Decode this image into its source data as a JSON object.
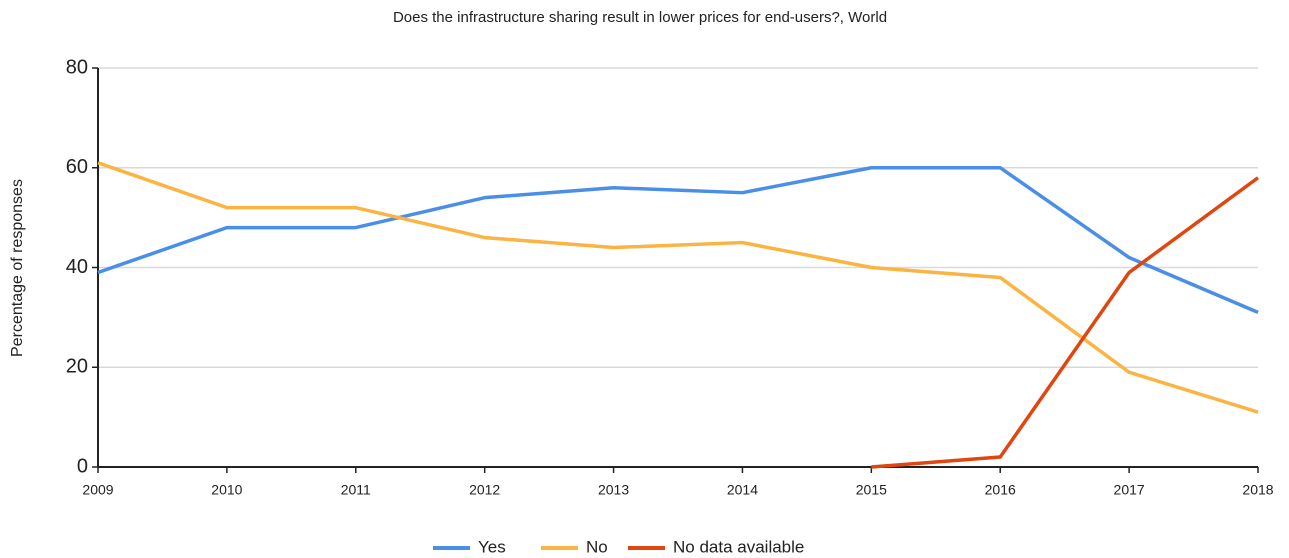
{
  "chart_data": {
    "type": "line",
    "title": "Does the infrastructure sharing result in lower prices for end-users?, World",
    "y_label": "Percentage of responses",
    "x": [
      2009,
      2010,
      2011,
      2012,
      2013,
      2014,
      2015,
      2016,
      2017,
      2018
    ],
    "xlim": [
      2009,
      2018
    ],
    "xticks": [
      2009,
      2010,
      2011,
      2012,
      2013,
      2014,
      2015,
      2016,
      2017,
      2018
    ],
    "ylim": [
      0,
      80
    ],
    "yticks": [
      0,
      20,
      40,
      60,
      80
    ],
    "grid": true,
    "legend": "bottom",
    "series": [
      {
        "name": "Yes",
        "color": "#4a8fe7",
        "values": [
          39,
          48,
          48,
          54,
          56,
          55,
          60,
          60,
          42,
          31
        ]
      },
      {
        "name": "No",
        "color": "#fbb342",
        "values": [
          61,
          52,
          52,
          46,
          44,
          45,
          40,
          38,
          19,
          11
        ]
      },
      {
        "name": "No data available",
        "color": "#e0460f",
        "values": [
          null,
          null,
          null,
          null,
          null,
          null,
          0,
          2,
          39,
          58
        ]
      }
    ]
  }
}
